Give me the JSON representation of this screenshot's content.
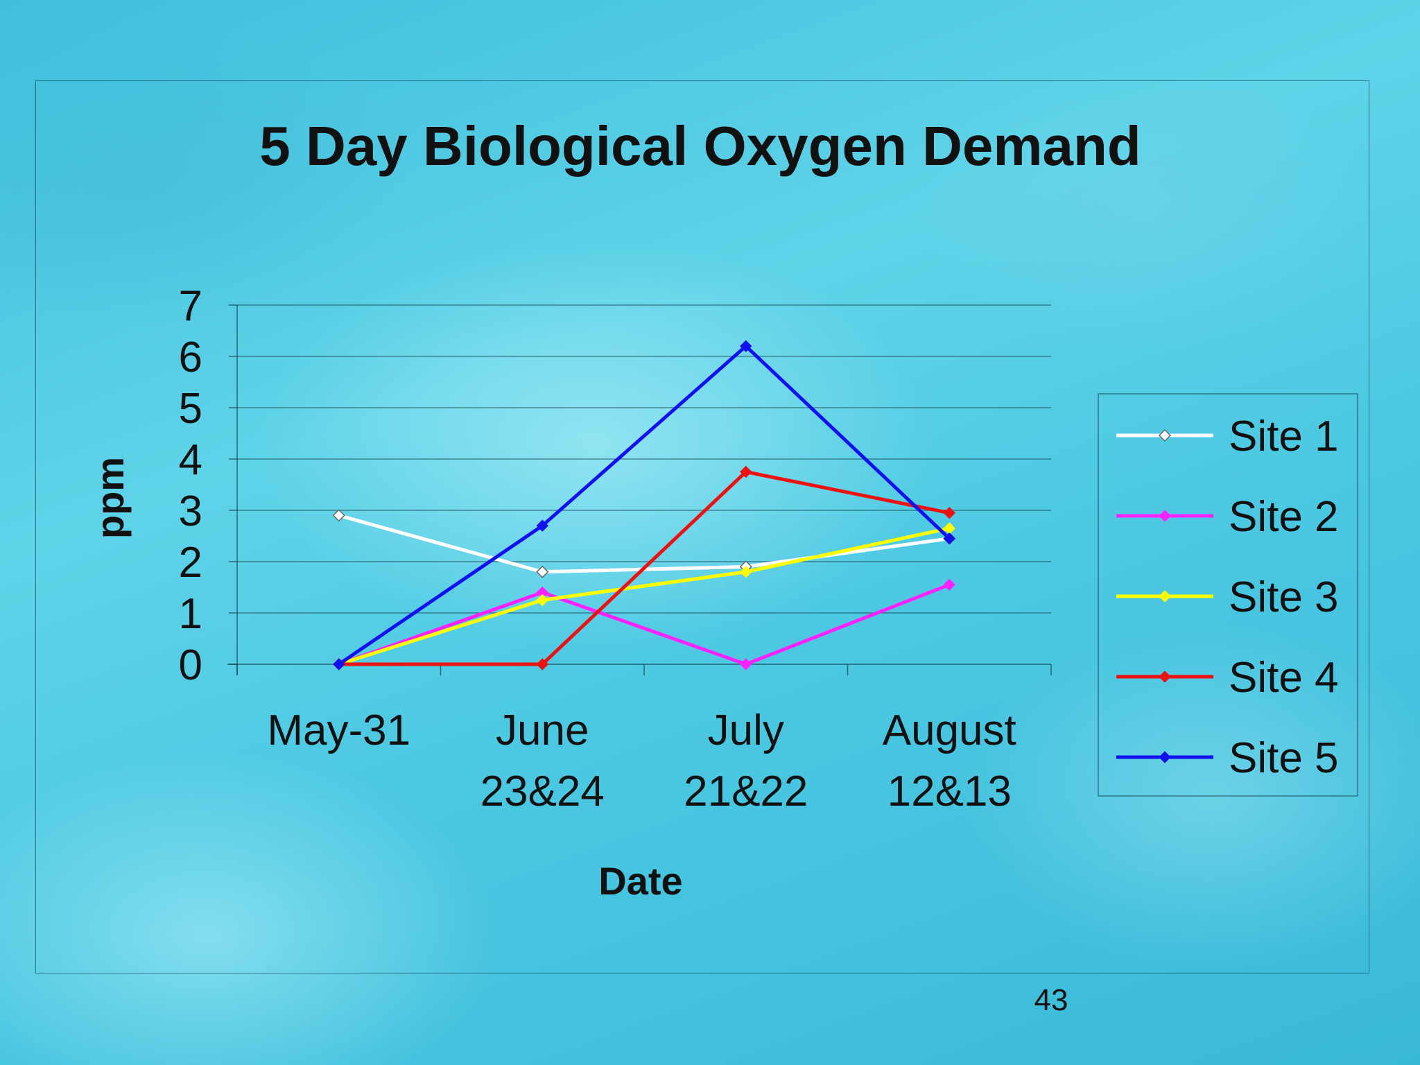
{
  "slide": {
    "page_number": "43"
  },
  "chart_data": {
    "type": "line",
    "title": "5 Day Biological Oxygen Demand",
    "xlabel": "Date",
    "ylabel": "ppm",
    "categories": [
      [
        "May-31"
      ],
      [
        "June",
        "23&24"
      ],
      [
        "July",
        "21&22"
      ],
      [
        "August",
        "12&13"
      ]
    ],
    "ylim": [
      0,
      7
    ],
    "yticks": [
      0,
      1,
      2,
      3,
      4,
      5,
      6,
      7
    ],
    "grid": true,
    "legend": "right",
    "series": [
      {
        "name": "Site 1",
        "color": "#ffffff",
        "marker": "diamond-open",
        "values": [
          2.9,
          1.8,
          1.9,
          2.45
        ]
      },
      {
        "name": "Site 2",
        "color": "#ff22ff",
        "marker": "diamond",
        "values": [
          0,
          1.4,
          0,
          1.55
        ]
      },
      {
        "name": "Site 3",
        "color": "#ffff00",
        "marker": "diamond",
        "values": [
          0,
          1.25,
          1.8,
          2.65
        ]
      },
      {
        "name": "Site 4",
        "color": "#ee1111",
        "marker": "diamond",
        "values": [
          0,
          0,
          3.75,
          2.95
        ]
      },
      {
        "name": "Site 5",
        "color": "#1111ee",
        "marker": "diamond",
        "values": [
          0,
          2.7,
          6.2,
          2.45
        ]
      }
    ]
  }
}
